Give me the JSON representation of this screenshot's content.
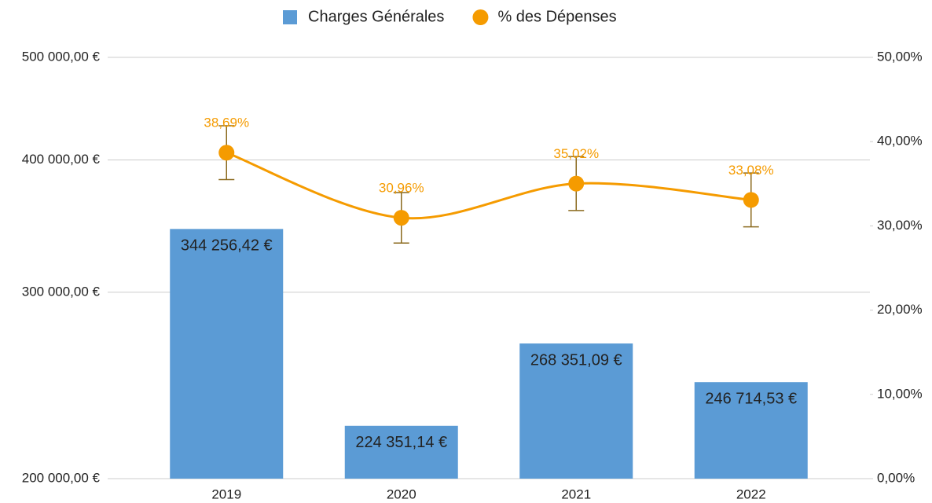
{
  "chart_data": {
    "type": "combo",
    "categories": [
      "2019",
      "2020",
      "2021",
      "2022"
    ],
    "series": [
      {
        "name": "Charges Générales",
        "type": "bar",
        "color": "#5b9bd5",
        "values": [
          344256.42,
          224351.14,
          268351.09,
          246714.53
        ],
        "value_labels": [
          "344 256,42 €",
          "224 351,14 €",
          "268 351,09 €",
          "246 714,53 €"
        ]
      },
      {
        "name": "% des Dépenses",
        "type": "line",
        "axis": "y2",
        "color": "#f59b00",
        "error_color": "#8b6a1e",
        "values": [
          38.69,
          30.96,
          35.02,
          33.08
        ],
        "value_labels": [
          "38,69%",
          "30,96%",
          "35,02%",
          "33,08%"
        ],
        "errors": [
          3.2,
          3,
          3.2,
          3.2
        ]
      }
    ],
    "ylim": [
      200000,
      500000
    ],
    "y_log": true,
    "yticks": [
      {
        "value": 200000,
        "label": "200 000,00 €"
      },
      {
        "value": 300000,
        "label": "300 000,00 €"
      },
      {
        "value": 400000,
        "label": "400 000,00 €"
      },
      {
        "value": 500000,
        "label": "500 000,00 €"
      }
    ],
    "y2lim": [
      0,
      50
    ],
    "y2ticks": [
      {
        "value": 0,
        "label": "0,00%"
      },
      {
        "value": 10,
        "label": "10,00%"
      },
      {
        "value": 20,
        "label": "20,00%"
      },
      {
        "value": 30,
        "label": "30,00%"
      },
      {
        "value": 40,
        "label": "40,00%"
      },
      {
        "value": 50,
        "label": "50,00%"
      }
    ],
    "grid": true,
    "legend": "top"
  }
}
